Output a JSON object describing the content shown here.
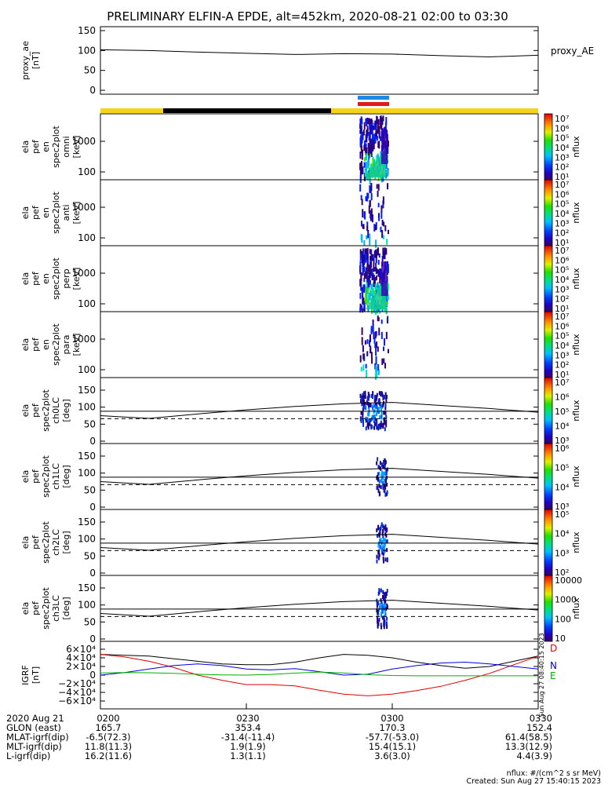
{
  "title": "PRELIMINARY ELFIN-A EPDE, alt=452km, 2020-08-21 02:00 to 03:30",
  "colors": {
    "sun": "#f5d31a",
    "shadow": "#000000",
    "bar_blue": "#1a8ae6",
    "bar_red": "#e01b1b",
    "bx": "#e00000",
    "by": "#0000e0",
    "bz": "#00b000",
    "trace": "#000000"
  },
  "chart_data": [
    {
      "type": "line",
      "ylabel_lines": [
        "proxy_ae",
        "[nT]"
      ],
      "legend": "proxy_AE",
      "ylim": [
        0,
        150
      ],
      "yticks": [
        "150",
        "100",
        "50",
        "0"
      ],
      "x": [
        0,
        10,
        20,
        30,
        40,
        50,
        60,
        70,
        80,
        90
      ],
      "values": [
        102,
        100,
        96,
        93,
        90,
        92,
        91,
        87,
        84,
        88
      ]
    },
    {
      "type": "heatmap",
      "ylabel_lines": [
        "ela",
        "pef",
        "en",
        "spec2plot",
        "omni",
        "[keV]"
      ],
      "yticks": [
        "1000",
        "100"
      ],
      "colorbar": {
        "label": "nflux",
        "ticks": [
          "10⁷",
          "10⁶",
          "10⁵",
          "10⁴",
          "10³",
          "10²",
          "10¹"
        ]
      }
    },
    {
      "type": "heatmap",
      "ylabel_lines": [
        "ela",
        "pef",
        "en",
        "spec2plot",
        "anti",
        "[keV]"
      ],
      "yticks": [
        "1000",
        "100"
      ],
      "colorbar": {
        "label": "nflux",
        "ticks": [
          "10⁷",
          "10⁶",
          "10⁵",
          "10⁴",
          "10³",
          "10²",
          "10¹"
        ]
      }
    },
    {
      "type": "heatmap",
      "ylabel_lines": [
        "ela",
        "pef",
        "en",
        "spec2plot",
        "perp",
        "[keV]"
      ],
      "yticks": [
        "1000",
        "100"
      ],
      "colorbar": {
        "label": "nflux",
        "ticks": [
          "10⁷",
          "10⁶",
          "10⁵",
          "10⁴",
          "10³",
          "10²",
          "10¹"
        ]
      }
    },
    {
      "type": "heatmap",
      "ylabel_lines": [
        "ela",
        "pef",
        "en",
        "spec2plot",
        "para",
        "[keV]"
      ],
      "yticks": [
        "1000",
        "100"
      ],
      "colorbar": {
        "label": "nflux",
        "ticks": [
          "10⁷",
          "10⁶",
          "10⁵",
          "10⁴",
          "10³",
          "10²",
          "10¹"
        ]
      }
    },
    {
      "type": "heatmap",
      "ylabel_lines": [
        "ela",
        "pef",
        "spec2plot",
        "ch0LC",
        "[deg]"
      ],
      "yticks": [
        "150",
        "100",
        "50",
        "0"
      ],
      "colorbar": {
        "label": "nflux",
        "ticks": [
          "10⁷",
          "10⁶",
          "10⁵",
          "10⁴",
          "10³"
        ]
      }
    },
    {
      "type": "heatmap",
      "ylabel_lines": [
        "ela",
        "pef",
        "spec2plot",
        "ch1LC",
        "[deg]"
      ],
      "yticks": [
        "150",
        "100",
        "50",
        "0"
      ],
      "colorbar": {
        "label": "nflux",
        "ticks": [
          "10⁶",
          "10⁵",
          "10⁴",
          "10³"
        ]
      }
    },
    {
      "type": "heatmap",
      "ylabel_lines": [
        "ela",
        "pef",
        "spec2plot",
        "ch2LC",
        "[deg]"
      ],
      "yticks": [
        "150",
        "100",
        "50",
        "0"
      ],
      "colorbar": {
        "label": "nflux",
        "ticks": [
          "10⁵",
          "10⁴",
          "10³",
          "10²"
        ]
      }
    },
    {
      "type": "heatmap",
      "ylabel_lines": [
        "ela",
        "pef",
        "spec2plot",
        "ch3LC",
        "[deg]"
      ],
      "yticks": [
        "150",
        "100",
        "50",
        "0"
      ],
      "colorbar": {
        "label": "nflux",
        "ticks": [
          "10000",
          "1000",
          "100",
          "10"
        ]
      }
    },
    {
      "type": "line",
      "ylabel_lines": [
        "IGRF",
        "[nT]"
      ],
      "ylim": [
        -60000,
        60000
      ],
      "yticks": [
        "6×10⁴",
        "4×10⁴",
        "2×10⁴",
        "0",
        "−2×10⁴",
        "−4×10⁴",
        "−6×10⁴"
      ],
      "legend": [
        "D",
        "N",
        "E"
      ]
    }
  ],
  "losscone": {
    "x": [
      0,
      10,
      20,
      30,
      40,
      50,
      60,
      70,
      80,
      90
    ],
    "values": [
      75,
      67,
      80,
      92,
      102,
      110,
      114,
      105,
      96,
      85
    ],
    "dashed": 66,
    "solid": 88
  },
  "igrf": {
    "x": [
      0,
      5,
      10,
      15,
      20,
      25,
      30,
      35,
      40,
      45,
      50,
      55,
      60,
      65,
      70,
      75,
      80,
      85,
      90
    ],
    "D": [
      48000,
      42000,
      32000,
      18000,
      0,
      -12000,
      -22000,
      -22000,
      -25000,
      -35000,
      -44000,
      -48000,
      -44000,
      -36000,
      -26000,
      -12000,
      4000,
      24000,
      44000
    ],
    "N": [
      0,
      6000,
      14000,
      22000,
      26000,
      22000,
      14000,
      12000,
      15000,
      8000,
      0,
      2000,
      14000,
      22000,
      28000,
      30000,
      26000,
      20000,
      14000
    ],
    "E": [
      5000,
      6000,
      5500,
      4000,
      2000,
      500,
      0,
      1500,
      4500,
      7000,
      5000,
      1000,
      -1000,
      -1500,
      -1500,
      -1500,
      -1500,
      -1500,
      -1500
    ],
    "total": [
      48000,
      46000,
      44000,
      38000,
      32000,
      26000,
      24000,
      24000,
      30000,
      40000,
      48000,
      46000,
      40000,
      30000,
      22000,
      16000,
      20000,
      32000,
      44000
    ]
  },
  "footer": {
    "row_labels": [
      "2020 Aug 21",
      "GLON (east)",
      "MLAT-igrf(dip)",
      "MLT-igrf(dip)",
      "L-igrf(dip)"
    ],
    "columns": [
      {
        "time": "0200",
        "values": [
          "165.7",
          "-6.5(72.3)",
          "11.8(11.3)",
          "16.2(11.6)"
        ]
      },
      {
        "time": "0230",
        "values": [
          "353.4",
          "-31.4(-11.4)",
          "1.9(1.9)",
          "1.3(1.1)"
        ]
      },
      {
        "time": "0300",
        "values": [
          "170.3",
          "-57.7(-53.0)",
          "15.4(15.1)",
          "3.6(3.0)"
        ]
      },
      {
        "time": "0330",
        "values": [
          "152.4",
          "61.4(58.5)",
          "13.3(12.9)",
          "4.4(3.9)"
        ]
      }
    ],
    "units": "nflux: #/(cm^2 s sr MeV)",
    "created": "Created: Sun Aug 27 15:40:15 2023",
    "side_stamp": "Sun Aug 27 08:40:15 2023"
  }
}
